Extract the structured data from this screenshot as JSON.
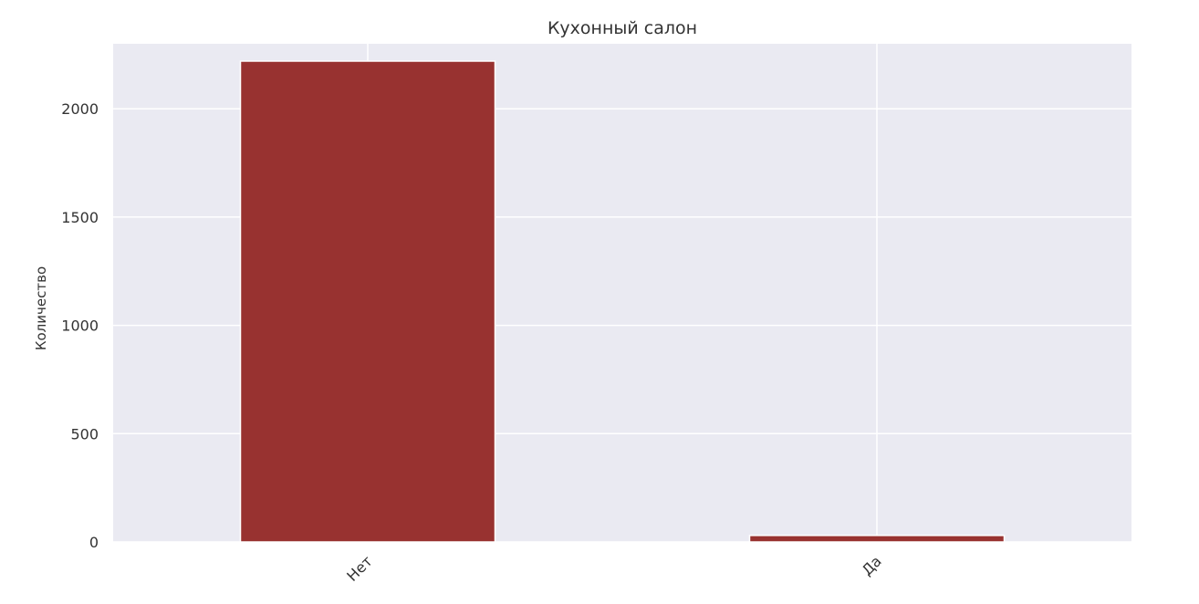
{
  "chart_data": {
    "type": "bar",
    "title": "Кухонный салон",
    "xlabel": "",
    "ylabel": "Количество",
    "categories": [
      "Нет",
      "Да"
    ],
    "values": [
      2220,
      30
    ],
    "ylim": [
      0,
      2300
    ],
    "yticks": [
      0,
      500,
      1000,
      1500,
      2000
    ],
    "ytick_labels": [
      "0",
      "500",
      "1000",
      "1500",
      "2000"
    ],
    "grid": true,
    "legend": "none",
    "colors": {
      "bar": "#983230",
      "plot_background": "#EAEAF2",
      "gridline": "#FFFFFF",
      "text": "#333333"
    }
  }
}
